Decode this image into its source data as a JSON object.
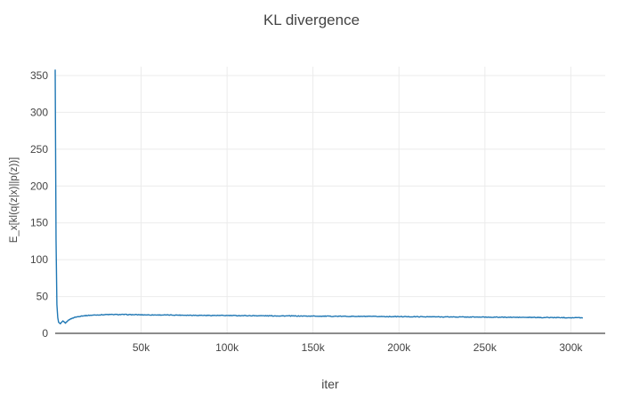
{
  "chart_data": {
    "type": "line",
    "title": "KL divergence",
    "xlabel": "iter",
    "ylabel": "E_x[kl(q(z|x)||p(z))]",
    "xlim": [
      0,
      320000
    ],
    "ylim": [
      0,
      362
    ],
    "grid": true,
    "legend": "none",
    "background": "#ffffff",
    "grid_color": "#ebebeb",
    "zeroline_color": "#666666",
    "text_color": "#444444",
    "line_color": "#1f77b4",
    "x_ticks": [
      {
        "value": 50000,
        "label": "50k"
      },
      {
        "value": 100000,
        "label": "100k"
      },
      {
        "value": 150000,
        "label": "150k"
      },
      {
        "value": 200000,
        "label": "200k"
      },
      {
        "value": 250000,
        "label": "250k"
      },
      {
        "value": 300000,
        "label": "300k"
      }
    ],
    "y_ticks": [
      {
        "value": 0,
        "label": "0"
      },
      {
        "value": 50,
        "label": "50"
      },
      {
        "value": 100,
        "label": "100"
      },
      {
        "value": 150,
        "label": "150"
      },
      {
        "value": 200,
        "label": "200"
      },
      {
        "value": 250,
        "label": "250"
      },
      {
        "value": 300,
        "label": "300"
      },
      {
        "value": 350,
        "label": "350"
      }
    ],
    "series": [
      {
        "name": "KL divergence",
        "points": [
          [
            0,
            358
          ],
          [
            200,
            270
          ],
          [
            400,
            160
          ],
          [
            700,
            60
          ],
          [
            1200,
            25
          ],
          [
            2000,
            15
          ],
          [
            3000,
            13
          ],
          [
            4500,
            16.5
          ],
          [
            6000,
            14
          ],
          [
            8000,
            18.5
          ],
          [
            11000,
            21.5
          ],
          [
            15000,
            23.5
          ],
          [
            20000,
            24.5
          ],
          [
            30000,
            25.5
          ],
          [
            40000,
            25.5
          ],
          [
            55000,
            25
          ],
          [
            70000,
            24.8
          ],
          [
            90000,
            24.3
          ],
          [
            110000,
            24
          ],
          [
            130000,
            23.7
          ],
          [
            160000,
            23.2
          ],
          [
            190000,
            22.8
          ],
          [
            220000,
            22.4
          ],
          [
            250000,
            22
          ],
          [
            275000,
            21.6
          ],
          [
            307000,
            21.2
          ]
        ],
        "noise_amplitude": 0.45,
        "noise_step": 500
      }
    ]
  }
}
